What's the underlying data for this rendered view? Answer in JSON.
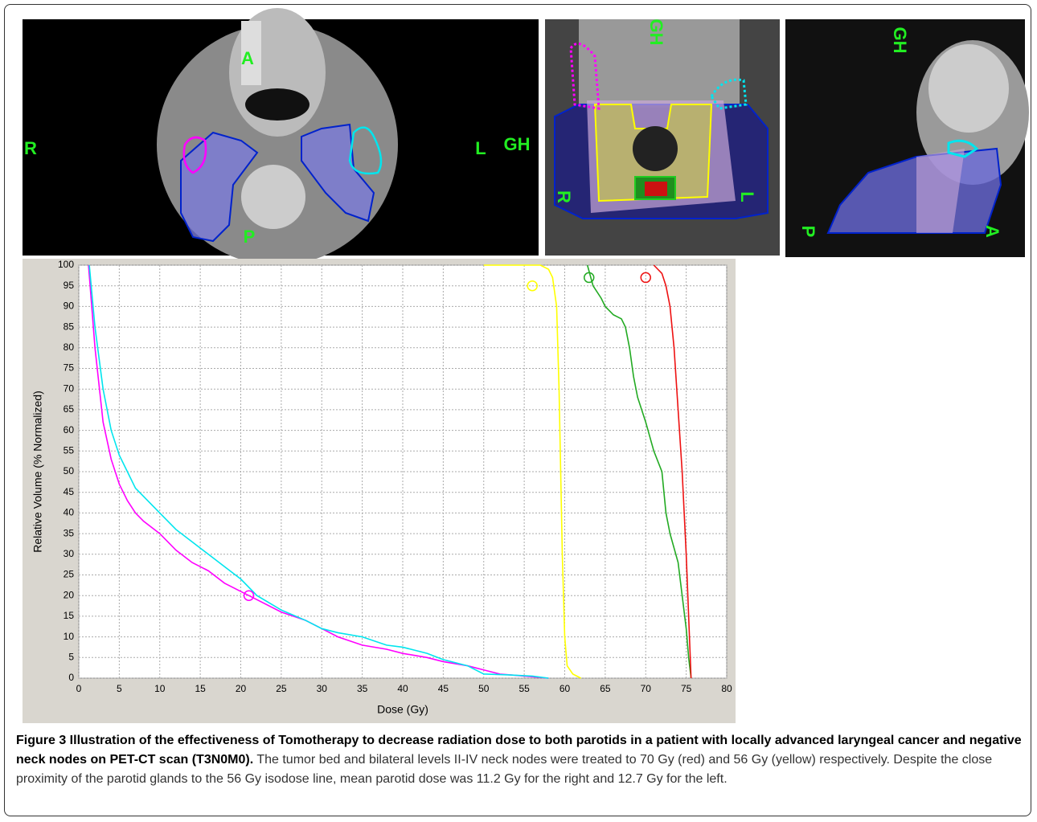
{
  "images": [
    {
      "labels": [
        "A",
        "R",
        "L",
        "GH",
        "P"
      ]
    },
    {
      "labels": [
        "GH",
        "R",
        "L"
      ]
    },
    {
      "labels": [
        "GH",
        "P",
        "A"
      ]
    }
  ],
  "chart_data": {
    "type": "line",
    "xlabel": "Dose (Gy)",
    "ylabel": "Relative Volume (% Normalized)",
    "xlim": [
      0,
      80
    ],
    "ylim": [
      0,
      100
    ],
    "xticks": [
      0,
      5,
      10,
      15,
      20,
      25,
      30,
      35,
      40,
      45,
      50,
      55,
      60,
      65,
      70,
      75,
      80
    ],
    "yticks": [
      0,
      5,
      10,
      15,
      20,
      25,
      30,
      35,
      40,
      45,
      50,
      55,
      60,
      65,
      70,
      75,
      80,
      85,
      90,
      95,
      100
    ],
    "grid": true,
    "series": [
      {
        "color": "#ff00ff",
        "x": [
          1.2,
          2,
          3,
          4,
          5,
          6,
          7,
          8,
          10,
          12,
          14,
          16,
          18,
          20,
          22,
          25,
          28,
          30,
          32,
          35,
          38,
          40,
          43,
          45,
          48,
          50,
          52,
          55,
          58
        ],
        "values": [
          100,
          80,
          62,
          53,
          47,
          43,
          40,
          38,
          35,
          31,
          28,
          26,
          23,
          21,
          19,
          16,
          14,
          12,
          10,
          8,
          7,
          6,
          5,
          4,
          3,
          2,
          1,
          0.5,
          0
        ]
      },
      {
        "color": "#00e5ee",
        "x": [
          1.3,
          2,
          3,
          4,
          5,
          6,
          7,
          8,
          10,
          12,
          14,
          16,
          18,
          20,
          22,
          25,
          28,
          30,
          32,
          35,
          38,
          40,
          43,
          45,
          48,
          50,
          53,
          56,
          58
        ],
        "values": [
          100,
          85,
          70,
          60,
          54,
          50,
          46,
          44,
          40,
          36,
          33,
          30,
          27,
          24,
          20,
          16.5,
          14,
          12,
          11,
          10,
          8,
          7.5,
          6,
          4.5,
          3,
          1,
          0.8,
          0.5,
          0
        ]
      },
      {
        "color": "#ffff00",
        "x": [
          50,
          57,
          58,
          58.5,
          59,
          59.3,
          59.5,
          59.7,
          60,
          60.3,
          61,
          62
        ],
        "values": [
          100,
          100,
          99,
          97,
          90,
          70,
          50,
          30,
          10,
          3,
          1,
          0
        ]
      },
      {
        "color": "#22aa22",
        "x": [
          62.8,
          63.5,
          64.5,
          65,
          65.5,
          66,
          67,
          67.5,
          68,
          68.5,
          69,
          70,
          71,
          72,
          72.5,
          73,
          74,
          74.5,
          75,
          75.3,
          75.6
        ],
        "values": [
          100,
          95,
          92,
          90,
          89,
          88,
          87,
          85,
          80,
          73,
          68,
          62,
          55,
          50,
          40,
          35,
          28,
          20,
          12,
          5,
          0
        ]
      },
      {
        "color": "#ee1111",
        "x": [
          71,
          72,
          72.5,
          73,
          73.5,
          74,
          74.5,
          75,
          75.3,
          75.5,
          75.6
        ],
        "values": [
          100,
          98,
          95,
          90,
          80,
          65,
          50,
          30,
          15,
          5,
          0
        ]
      }
    ],
    "markers": [
      {
        "color": "#ff00ff",
        "x": 21,
        "y": 20
      },
      {
        "color": "#ffff00",
        "x": 56,
        "y": 95
      },
      {
        "color": "#22aa22",
        "x": 63,
        "y": 97
      },
      {
        "color": "#ee1111",
        "x": 70,
        "y": 97
      }
    ]
  },
  "caption": {
    "bold": "Figure 3 Illustration of the effectiveness of Tomotherapy to decrease radiation dose to both parotids in a patient with locally advanced laryngeal cancer and negative neck nodes on PET-CT scan (T3N0M0).",
    "text": "The tumor bed and bilateral levels II-IV neck nodes were treated to 70 Gy (red) and 56 Gy (yellow) respectively. Despite the close proximity of the parotid glands to the 56 Gy isodose line, mean parotid dose was 11.2 Gy for the right and 12.7 Gy for the left."
  }
}
